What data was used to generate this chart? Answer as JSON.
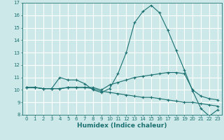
{
  "title": "",
  "xlabel": "Humidex (Indice chaleur)",
  "background_color": "#cde8e8",
  "grid_color": "#ffffff",
  "line_color": "#1a7070",
  "xlim": [
    -0.5,
    23.5
  ],
  "ylim": [
    8,
    17
  ],
  "xticks": [
    0,
    1,
    2,
    3,
    4,
    5,
    6,
    7,
    8,
    9,
    10,
    11,
    12,
    13,
    14,
    15,
    16,
    17,
    18,
    19,
    20,
    21,
    22,
    23
  ],
  "yticks": [
    8,
    9,
    10,
    11,
    12,
    13,
    14,
    15,
    16,
    17
  ],
  "line1_x": [
    0,
    1,
    2,
    3,
    4,
    5,
    6,
    7,
    8,
    9,
    10,
    11,
    12,
    13,
    14,
    15,
    16,
    17,
    18,
    19,
    20,
    21,
    22,
    23
  ],
  "line1_y": [
    10.2,
    10.2,
    10.1,
    10.1,
    11.0,
    10.8,
    10.8,
    10.5,
    10.0,
    9.8,
    10.1,
    11.3,
    13.0,
    15.4,
    16.3,
    16.8,
    16.2,
    14.8,
    13.2,
    11.6,
    9.9,
    8.5,
    7.9,
    8.4
  ],
  "line2_x": [
    0,
    1,
    2,
    3,
    4,
    5,
    6,
    7,
    8,
    9,
    10,
    11,
    12,
    13,
    14,
    15,
    16,
    17,
    18,
    19,
    20,
    21,
    22,
    23
  ],
  "line2_y": [
    10.2,
    10.2,
    10.1,
    10.1,
    10.1,
    10.2,
    10.2,
    10.2,
    10.2,
    10.0,
    10.4,
    10.6,
    10.8,
    11.0,
    11.1,
    11.2,
    11.3,
    11.4,
    11.4,
    11.3,
    10.0,
    9.5,
    9.3,
    9.2
  ],
  "line3_x": [
    0,
    1,
    2,
    3,
    4,
    5,
    6,
    7,
    8,
    9,
    10,
    11,
    12,
    13,
    14,
    15,
    16,
    17,
    18,
    19,
    20,
    21,
    22,
    23
  ],
  "line3_y": [
    10.2,
    10.2,
    10.1,
    10.1,
    10.1,
    10.2,
    10.2,
    10.2,
    10.1,
    9.9,
    9.8,
    9.7,
    9.6,
    9.5,
    9.4,
    9.4,
    9.3,
    9.2,
    9.1,
    9.0,
    9.0,
    8.9,
    8.8,
    8.7
  ],
  "tick_fontsize": 5.0,
  "xlabel_fontsize": 6.5
}
